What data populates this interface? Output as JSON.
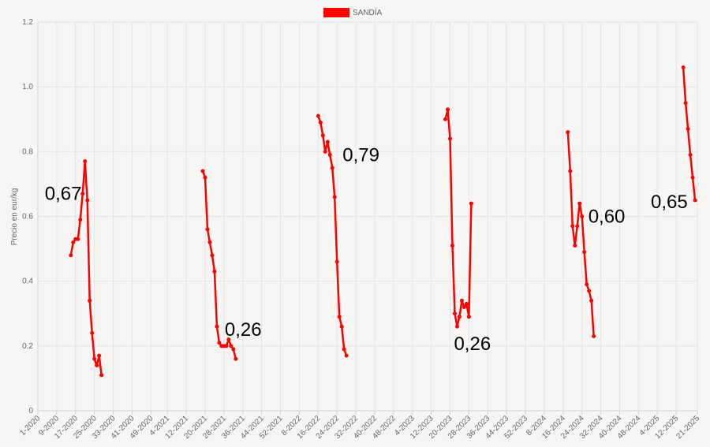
{
  "chart_data": {
    "type": "line",
    "ylabel": "Precio en eur/kg",
    "ylim": [
      0,
      1.2
    ],
    "yticks": [
      "0",
      "0.2",
      "0.4",
      "0.6",
      "0.8",
      "1.0",
      "1.2"
    ],
    "grid": true,
    "legend_position": "top-center",
    "x_tick_labels": [
      "1-2020",
      "9-2020",
      "17-2020",
      "25-2020",
      "33-2020",
      "41-2020",
      "49-2020",
      "4-2021",
      "12-2021",
      "20-2021",
      "28-2021",
      "36-2021",
      "44-2021",
      "52-2021",
      "8-2022",
      "16-2022",
      "24-2022",
      "32-2022",
      "40-2022",
      "48-2022",
      "4-2023",
      "12-2023",
      "20-2023",
      "28-2023",
      "36-2023",
      "44-2023",
      "52-2023",
      "8-2024",
      "16-2024",
      "24-2024",
      "32-2024",
      "40-2024",
      "48-2024",
      "4-2025",
      "12-2025",
      "21-2025"
    ],
    "series": [
      {
        "name": "SANDÍA",
        "color": "#ff0000",
        "segments": [
          [
            [
              "15-2020",
              0.48
            ],
            [
              "16-2020",
              0.52
            ],
            [
              "17-2020",
              0.53
            ],
            [
              "18-2020",
              0.53
            ],
            [
              "19-2020",
              0.59
            ],
            [
              "20-2020",
              0.67
            ],
            [
              "21-2020",
              0.77
            ],
            [
              "22-2020",
              0.65
            ],
            [
              "23-2020",
              0.34
            ],
            [
              "24-2020",
              0.24
            ],
            [
              "25-2020",
              0.16
            ],
            [
              "26-2020",
              0.14
            ],
            [
              "27-2020",
              0.17
            ],
            [
              "28-2020",
              0.11
            ]
          ],
          [
            [
              "19-2021",
              0.74
            ],
            [
              "20-2021",
              0.72
            ],
            [
              "21-2021",
              0.56
            ],
            [
              "22-2021",
              0.52
            ],
            [
              "23-2021",
              0.48
            ],
            [
              "24-2021",
              0.43
            ],
            [
              "25-2021",
              0.26
            ],
            [
              "26-2021",
              0.21
            ],
            [
              "27-2021",
              0.2
            ],
            [
              "28-2021",
              0.2
            ],
            [
              "29-2021",
              0.2
            ],
            [
              "30-2021",
              0.22
            ],
            [
              "31-2021",
              0.2
            ],
            [
              "32-2021",
              0.19
            ],
            [
              "33-2021",
              0.16
            ]
          ],
          [
            [
              "16-2022",
              0.91
            ],
            [
              "17-2022",
              0.89
            ],
            [
              "18-2022",
              0.85
            ],
            [
              "19-2022",
              0.8
            ],
            [
              "20-2022",
              0.83
            ],
            [
              "21-2022",
              0.79
            ],
            [
              "22-2022",
              0.75
            ],
            [
              "23-2022",
              0.66
            ],
            [
              "24-2022",
              0.46
            ],
            [
              "25-2022",
              0.29
            ],
            [
              "26-2022",
              0.26
            ],
            [
              "27-2022",
              0.19
            ],
            [
              "28-2022",
              0.17
            ]
          ],
          [
            [
              "18-2023",
              0.9
            ],
            [
              "19-2023",
              0.93
            ],
            [
              "20-2023",
              0.84
            ],
            [
              "21-2023",
              0.51
            ],
            [
              "22-2023",
              0.3
            ],
            [
              "23-2023",
              0.26
            ],
            [
              "24-2023",
              0.29
            ],
            [
              "25-2023",
              0.34
            ],
            [
              "26-2023",
              0.32
            ],
            [
              "27-2023",
              0.33
            ],
            [
              "28-2023",
              0.29
            ],
            [
              "29-2023",
              0.64
            ]
          ],
          [
            [
              "18-2024",
              0.86
            ],
            [
              "19-2024",
              0.74
            ],
            [
              "20-2024",
              0.57
            ],
            [
              "21-2024",
              0.51
            ],
            [
              "22-2024",
              0.57
            ],
            [
              "23-2024",
              0.64
            ],
            [
              "24-2024",
              0.6
            ],
            [
              "25-2024",
              0.49
            ],
            [
              "26-2024",
              0.39
            ],
            [
              "27-2024",
              0.37
            ],
            [
              "28-2024",
              0.34
            ],
            [
              "29-2024",
              0.23
            ]
          ],
          [
            [
              "15-2025",
              1.06
            ],
            [
              "16-2025",
              0.95
            ],
            [
              "17-2025",
              0.87
            ],
            [
              "18-2025",
              0.79
            ],
            [
              "19-2025",
              0.72
            ],
            [
              "20-2025",
              0.65
            ]
          ]
        ]
      }
    ],
    "annotations": [
      "0,67",
      "0,26",
      "0,79",
      "0,26",
      "0,60",
      "0,65"
    ]
  }
}
